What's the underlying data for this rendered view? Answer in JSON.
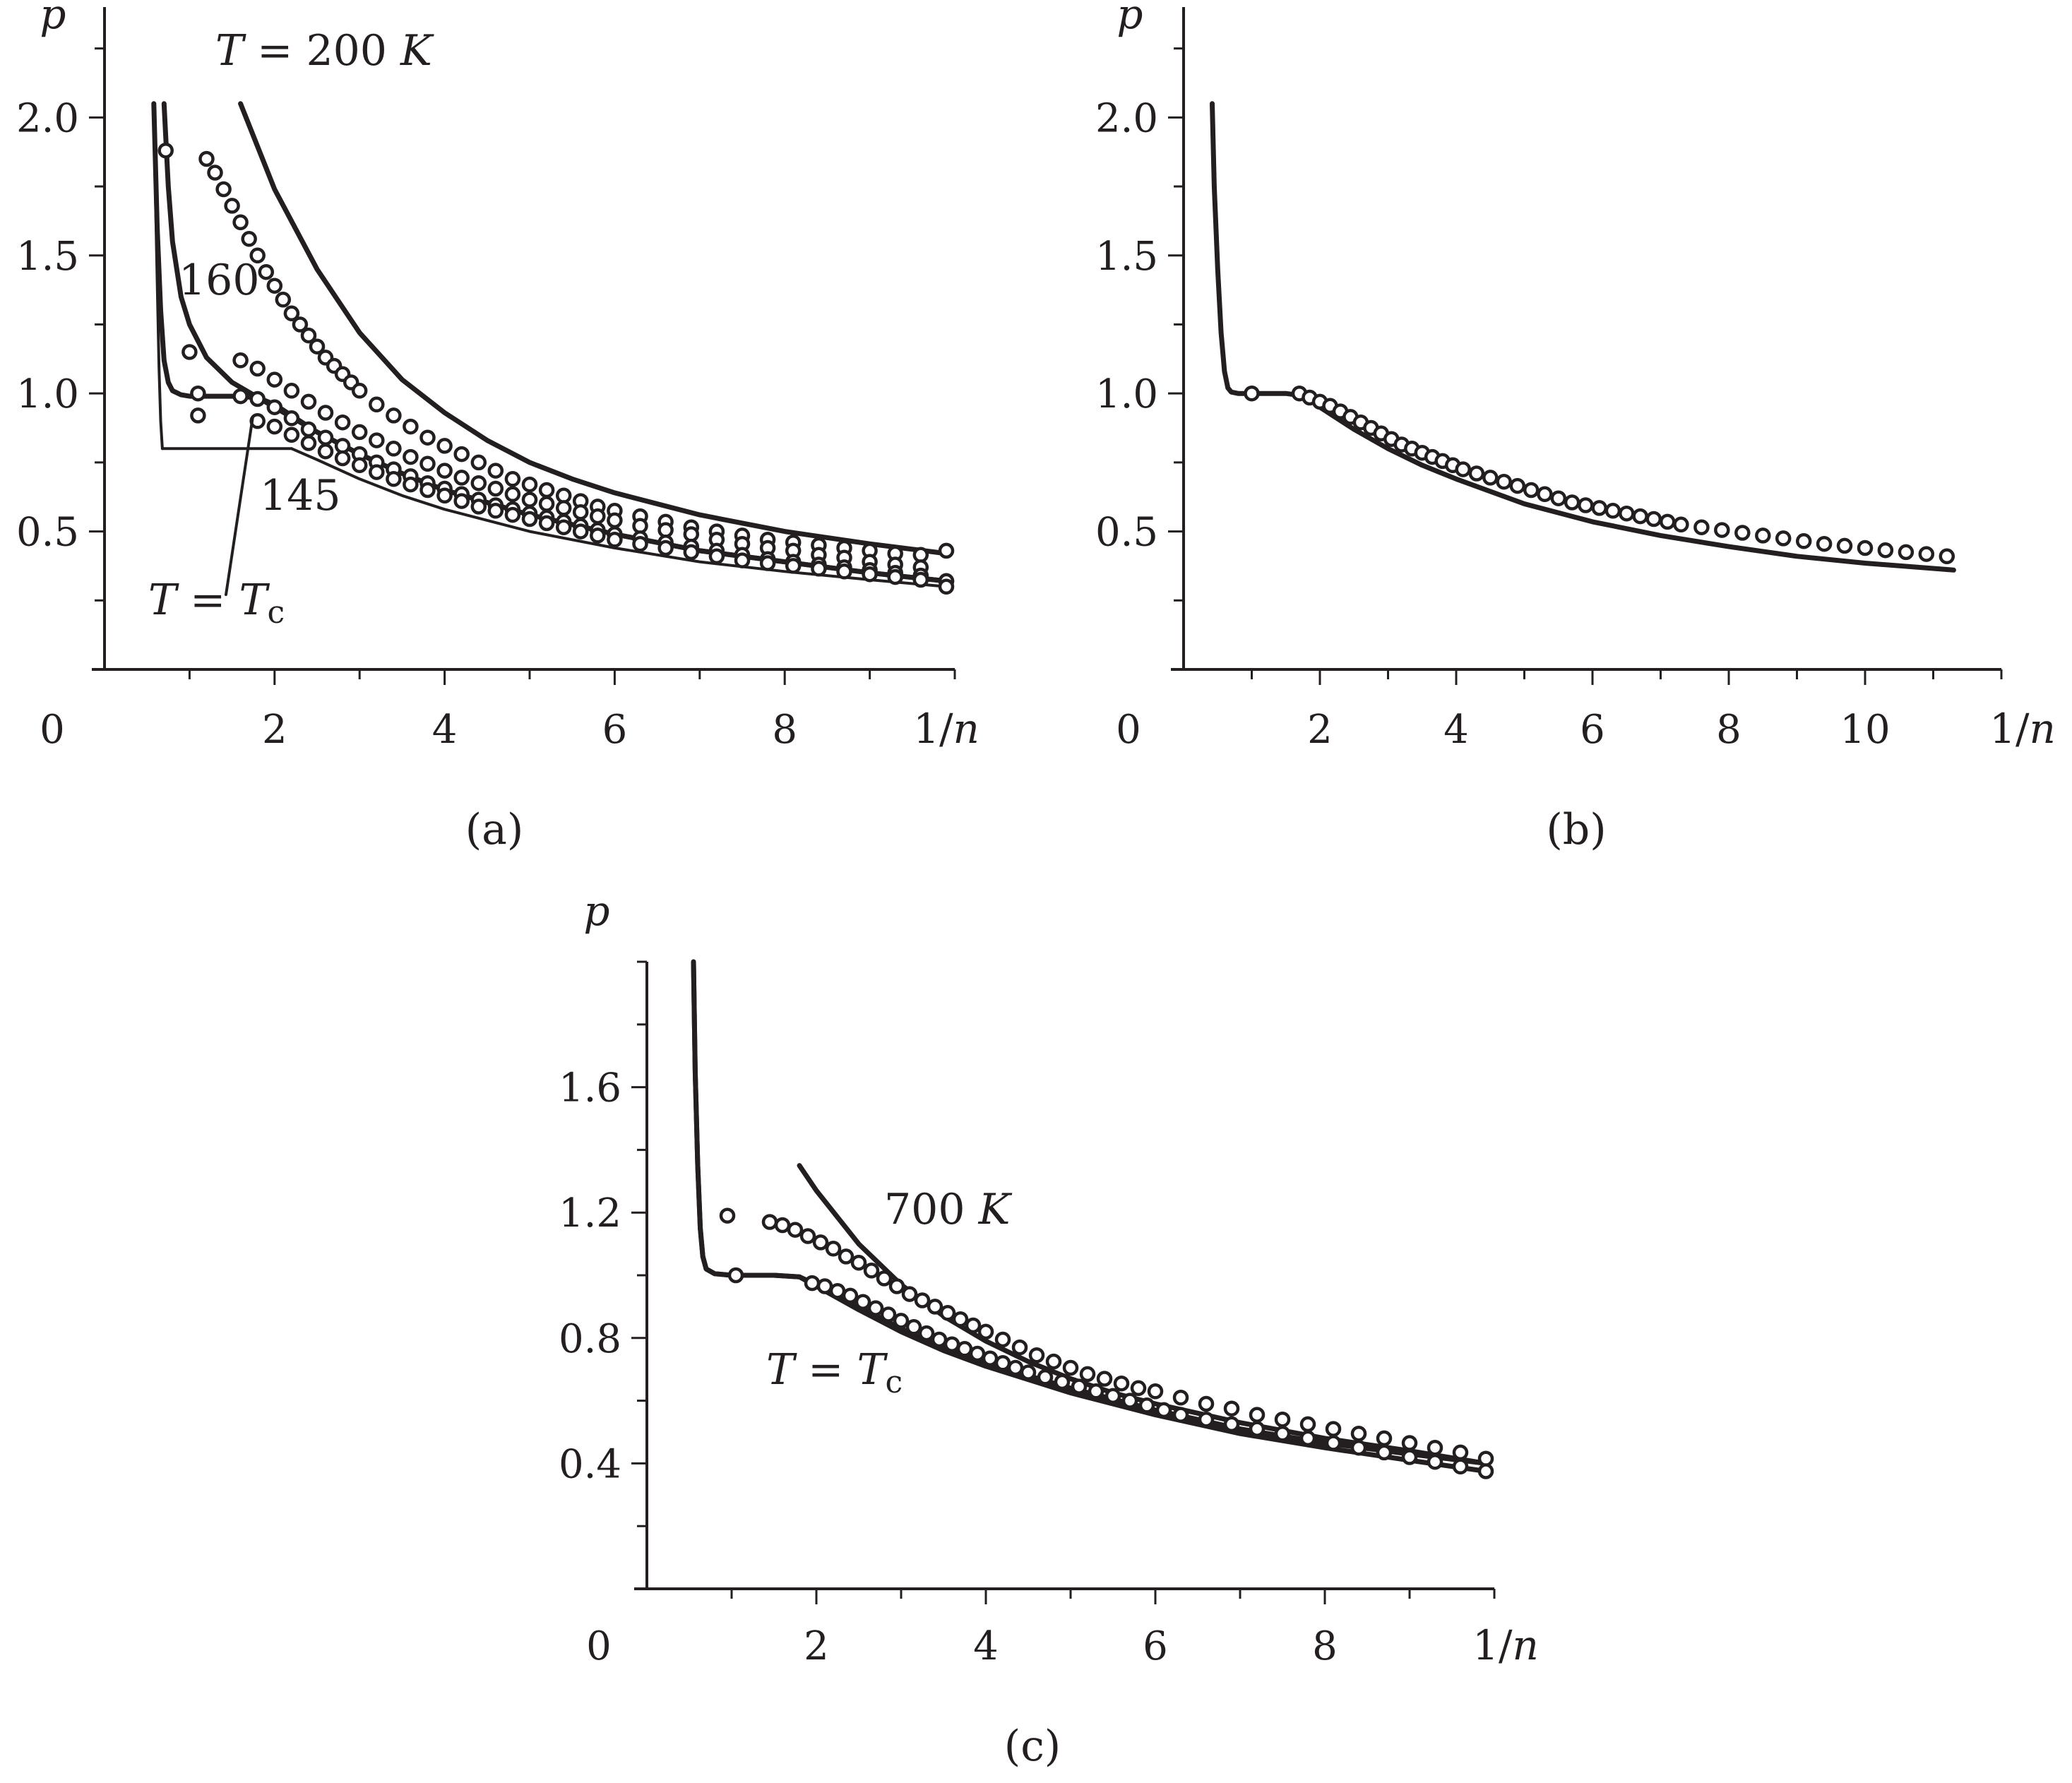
{
  "chart_data": [
    {
      "id": "a",
      "type": "line",
      "caption": "(a)",
      "xlabel": "1/n",
      "ylabel": "p",
      "origin_label": "0",
      "xlim": [
        0,
        10
      ],
      "ylim": [
        0,
        2.4
      ],
      "xticks": [
        2,
        4,
        6,
        8
      ],
      "xtick_labels": [
        "2",
        "4",
        "6",
        "8"
      ],
      "yticks": [
        0.5,
        1.0,
        1.5,
        2.0
      ],
      "ytick_labels": [
        "0.5",
        "1.0",
        "1.5",
        "2.0"
      ],
      "annotations": {
        "t200": [
          "T",
          " = 200 ",
          "K"
        ],
        "t160": "160",
        "t145": "145",
        "tc": [
          "T",
          " = ",
          "T",
          "c"
        ]
      },
      "series": [
        {
          "type": "line",
          "x": [
            1.6,
            2.0,
            2.5,
            3.0,
            3.5,
            4.0,
            4.5,
            5.0,
            5.5,
            6.0,
            7.0,
            8.0,
            9.0,
            9.9
          ],
          "y": [
            2.05,
            1.74,
            1.45,
            1.22,
            1.05,
            0.93,
            0.83,
            0.75,
            0.69,
            0.64,
            0.56,
            0.5,
            0.455,
            0.42
          ]
        },
        {
          "type": "line",
          "x": [
            0.7,
            0.75,
            0.8,
            0.9,
            1.0,
            1.2,
            1.5,
            2.0,
            2.5,
            3.0,
            3.5,
            4.0,
            5.0,
            6.0,
            7.0,
            8.0,
            9.0,
            9.9
          ],
          "y": [
            2.05,
            1.75,
            1.55,
            1.35,
            1.25,
            1.13,
            1.04,
            0.95,
            0.86,
            0.78,
            0.71,
            0.65,
            0.56,
            0.49,
            0.43,
            0.39,
            0.35,
            0.32
          ]
        },
        {
          "type": "line",
          "x": [
            0.58,
            0.62,
            0.66,
            0.7,
            0.75,
            0.8,
            0.9,
            1.0,
            1.2,
            1.5,
            1.8,
            2.0,
            2.5,
            3.0,
            3.5,
            4.0,
            5.0,
            6.0,
            7.0,
            8.0,
            9.0,
            9.9
          ],
          "y": [
            2.05,
            1.6,
            1.3,
            1.12,
            1.04,
            1.01,
            0.995,
            0.99,
            0.99,
            0.99,
            0.985,
            0.96,
            0.86,
            0.78,
            0.71,
            0.65,
            0.56,
            0.49,
            0.43,
            0.39,
            0.35,
            0.32
          ]
        },
        {
          "type": "line",
          "x": [
            0.58,
            0.61,
            0.64,
            0.66,
            0.68
          ],
          "y": [
            2.05,
            1.55,
            1.1,
            0.9,
            0.8
          ]
        },
        {
          "type": "line",
          "x": [
            0.68,
            2.2
          ],
          "y": [
            0.8,
            0.8
          ]
        },
        {
          "type": "line",
          "x": [
            2.2,
            2.5,
            3.0,
            3.5,
            4.0,
            5.0,
            6.0,
            7.0,
            8.0,
            9.0,
            9.9
          ],
          "y": [
            0.8,
            0.76,
            0.69,
            0.63,
            0.58,
            0.5,
            0.44,
            0.39,
            0.355,
            0.325,
            0.3
          ]
        },
        {
          "type": "scatter",
          "x": [
            1.2,
            1.3,
            1.4,
            1.5,
            1.6,
            1.7,
            1.8,
            1.9,
            2.0,
            2.1,
            2.2,
            2.3,
            2.4,
            2.5,
            2.6,
            2.7,
            2.8,
            2.9,
            3.0,
            3.2,
            3.4,
            3.6,
            3.8,
            4.0,
            4.2,
            4.4,
            4.6,
            4.8,
            5.0,
            5.2,
            5.4,
            5.6,
            5.8,
            6.0,
            6.3,
            6.6,
            6.9,
            7.2,
            7.5,
            7.8,
            8.1,
            8.4,
            8.7,
            9.0,
            9.3,
            9.6,
            9.9
          ],
          "y": [
            1.85,
            1.8,
            1.74,
            1.68,
            1.62,
            1.56,
            1.5,
            1.44,
            1.39,
            1.34,
            1.29,
            1.25,
            1.21,
            1.17,
            1.13,
            1.1,
            1.07,
            1.04,
            1.01,
            0.96,
            0.92,
            0.88,
            0.84,
            0.81,
            0.78,
            0.75,
            0.72,
            0.69,
            0.67,
            0.65,
            0.63,
            0.61,
            0.59,
            0.575,
            0.555,
            0.535,
            0.515,
            0.5,
            0.485,
            0.47,
            0.46,
            0.45,
            0.44,
            0.43,
            0.42,
            0.415,
            0.43
          ]
        },
        {
          "type": "scatter",
          "x": [
            0.72,
            1.0,
            1.6,
            1.8,
            2.0,
            2.2,
            2.4,
            2.6,
            2.8,
            3.0,
            3.2,
            3.4,
            3.6,
            3.8,
            4.0,
            4.2,
            4.4,
            4.6,
            4.8,
            5.0,
            5.2,
            5.4,
            5.6,
            5.8,
            6.0,
            6.3,
            6.6,
            6.9,
            7.2,
            7.5,
            7.8,
            8.1,
            8.4,
            8.7,
            9.0,
            9.3,
            9.6,
            9.9
          ],
          "y": [
            1.88,
            1.15,
            1.12,
            1.09,
            1.05,
            1.01,
            0.97,
            0.93,
            0.895,
            0.86,
            0.83,
            0.8,
            0.77,
            0.745,
            0.72,
            0.695,
            0.675,
            0.655,
            0.635,
            0.615,
            0.6,
            0.585,
            0.57,
            0.555,
            0.54,
            0.52,
            0.505,
            0.49,
            0.47,
            0.455,
            0.44,
            0.43,
            0.415,
            0.405,
            0.39,
            0.38,
            0.37,
            0.32
          ]
        },
        {
          "type": "scatter",
          "x": [
            1.1,
            1.6,
            1.8,
            2.0,
            2.2,
            2.4,
            2.6,
            2.8,
            3.0,
            3.2,
            3.4,
            3.6,
            3.8,
            4.0,
            4.2,
            4.4,
            4.6,
            4.8,
            5.0,
            5.2,
            5.4,
            5.6,
            5.8,
            6.0,
            6.3,
            6.6,
            6.9,
            7.2,
            7.5,
            7.8,
            8.1,
            8.4,
            8.7,
            9.0,
            9.3,
            9.6,
            9.9
          ],
          "y": [
            1.0,
            0.99,
            0.98,
            0.95,
            0.91,
            0.87,
            0.84,
            0.81,
            0.78,
            0.75,
            0.725,
            0.7,
            0.675,
            0.655,
            0.635,
            0.615,
            0.595,
            0.58,
            0.565,
            0.55,
            0.535,
            0.52,
            0.505,
            0.49,
            0.475,
            0.46,
            0.445,
            0.43,
            0.415,
            0.4,
            0.39,
            0.38,
            0.37,
            0.36,
            0.35,
            0.34,
            0.32
          ]
        },
        {
          "type": "scatter",
          "x": [
            1.1,
            1.8,
            2.0,
            2.2,
            2.4,
            2.6,
            2.8,
            3.0,
            3.2,
            3.4,
            3.6,
            3.8,
            4.0,
            4.2,
            4.4,
            4.6,
            4.8,
            5.0,
            5.2,
            5.4,
            5.6,
            5.8,
            6.0,
            6.3,
            6.6,
            6.9,
            7.2,
            7.5,
            7.8,
            8.1,
            8.4,
            8.7,
            9.0,
            9.3,
            9.6,
            9.9
          ],
          "y": [
            0.92,
            0.9,
            0.88,
            0.85,
            0.82,
            0.79,
            0.765,
            0.74,
            0.715,
            0.69,
            0.67,
            0.65,
            0.63,
            0.61,
            0.59,
            0.575,
            0.56,
            0.545,
            0.53,
            0.515,
            0.5,
            0.485,
            0.47,
            0.455,
            0.44,
            0.425,
            0.41,
            0.395,
            0.385,
            0.375,
            0.365,
            0.355,
            0.345,
            0.335,
            0.325,
            0.3
          ]
        }
      ]
    },
    {
      "id": "b",
      "type": "line",
      "caption": "(b)",
      "xlabel": "1/n",
      "ylabel": "p",
      "origin_label": "0",
      "xlim": [
        0,
        12
      ],
      "ylim": [
        0,
        2.4
      ],
      "xticks": [
        2,
        4,
        6,
        8,
        10
      ],
      "xtick_labels": [
        "2",
        "4",
        "6",
        "8",
        "10"
      ],
      "yticks": [
        0.5,
        1.0,
        1.5,
        2.0
      ],
      "ytick_labels": [
        "0.5",
        "1.0",
        "1.5",
        "2.0"
      ],
      "series": [
        {
          "type": "line",
          "x": [
            0.42,
            0.45,
            0.5,
            0.55,
            0.6,
            0.65,
            0.7,
            0.8,
            1.0,
            1.5,
            1.8,
            2.0,
            2.5,
            3.0,
            3.5,
            4.0,
            5.0,
            6.0,
            7.0,
            8.0,
            9.0,
            10.0,
            11.3
          ],
          "y": [
            2.05,
            1.75,
            1.45,
            1.22,
            1.08,
            1.02,
            1.005,
            1.0,
            1.0,
            1.0,
            0.99,
            0.95,
            0.87,
            0.8,
            0.74,
            0.69,
            0.6,
            0.535,
            0.485,
            0.445,
            0.41,
            0.385,
            0.36
          ]
        },
        {
          "type": "scatter",
          "x": [
            1.0,
            1.7,
            1.85,
            2.0,
            2.15,
            2.3,
            2.45,
            2.6,
            2.75,
            2.9,
            3.05,
            3.2,
            3.35,
            3.5,
            3.65,
            3.8,
            3.95,
            4.1,
            4.3,
            4.5,
            4.7,
            4.9,
            5.1,
            5.3,
            5.5,
            5.7,
            5.9,
            6.1,
            6.3,
            6.5,
            6.7,
            6.9,
            7.1,
            7.3,
            7.6,
            7.9,
            8.2,
            8.5,
            8.8,
            9.1,
            9.4,
            9.7,
            10.0,
            10.3,
            10.6,
            10.9,
            11.2
          ],
          "y": [
            1.0,
            1.0,
            0.985,
            0.97,
            0.955,
            0.935,
            0.915,
            0.895,
            0.875,
            0.855,
            0.835,
            0.815,
            0.8,
            0.785,
            0.77,
            0.755,
            0.74,
            0.725,
            0.71,
            0.695,
            0.68,
            0.665,
            0.65,
            0.635,
            0.62,
            0.605,
            0.595,
            0.585,
            0.575,
            0.565,
            0.555,
            0.545,
            0.535,
            0.525,
            0.515,
            0.505,
            0.495,
            0.485,
            0.475,
            0.465,
            0.455,
            0.448,
            0.44,
            0.432,
            0.425,
            0.418,
            0.41
          ]
        }
      ]
    },
    {
      "id": "c",
      "type": "line",
      "caption": "(c)",
      "xlabel": "1/n",
      "ylabel": "p",
      "origin_label": "0",
      "xlim": [
        0,
        10
      ],
      "ylim": [
        0,
        2.0
      ],
      "xticks": [
        2,
        4,
        6,
        8
      ],
      "xtick_labels": [
        "2",
        "4",
        "6",
        "8"
      ],
      "yticks": [
        0.4,
        0.8,
        1.2,
        1.6
      ],
      "ytick_labels": [
        "0.4",
        "0.8",
        "1.2",
        "1.6"
      ],
      "annotations": {
        "t700": [
          "700 ",
          "K"
        ],
        "tc": [
          "T",
          " = ",
          "T",
          "c"
        ]
      },
      "series": [
        {
          "type": "line",
          "x": [
            1.8,
            2.0,
            2.5,
            3.0,
            3.5,
            4.0,
            4.5,
            5.0,
            5.5,
            6.0,
            7.0,
            8.0,
            9.0,
            9.9
          ],
          "y": [
            1.35,
            1.27,
            1.1,
            0.97,
            0.87,
            0.79,
            0.725,
            0.67,
            0.625,
            0.59,
            0.53,
            0.48,
            0.44,
            0.4
          ]
        },
        {
          "type": "line",
          "x": [
            0.55,
            0.57,
            0.6,
            0.63,
            0.66,
            0.7,
            0.8,
            1.0,
            1.5,
            1.8,
            2.0,
            2.5,
            3.0,
            3.5,
            4.0,
            5.0,
            6.0,
            7.0,
            8.0,
            9.0,
            9.9
          ],
          "y": [
            2.0,
            1.65,
            1.35,
            1.15,
            1.06,
            1.02,
            1.005,
            1.0,
            1.0,
            0.995,
            0.97,
            0.9,
            0.83,
            0.77,
            0.72,
            0.64,
            0.57,
            0.51,
            0.465,
            0.43,
            0.4
          ]
        },
        {
          "type": "line",
          "x": [
            0.55,
            0.57,
            0.6,
            0.63,
            0.66,
            0.7,
            0.8,
            1.0,
            1.5,
            1.8,
            2.0,
            2.5,
            3.0,
            3.5,
            4.0,
            5.0,
            6.0,
            7.0,
            8.0,
            9.0,
            9.9
          ],
          "y": [
            2.0,
            1.65,
            1.35,
            1.15,
            1.06,
            1.02,
            1.005,
            1.0,
            1.0,
            0.995,
            0.965,
            0.89,
            0.82,
            0.76,
            0.71,
            0.625,
            0.555,
            0.495,
            0.45,
            0.41,
            0.375
          ]
        },
        {
          "type": "scatter",
          "x": [
            0.95,
            1.45,
            1.6,
            1.75,
            1.9,
            2.05,
            2.2,
            2.35,
            2.5,
            2.65,
            2.8,
            2.95,
            3.1,
            3.25,
            3.4,
            3.55,
            3.7,
            3.85,
            4.0,
            4.2,
            4.4,
            4.6,
            4.8,
            5.0,
            5.2,
            5.4,
            5.6,
            5.8,
            6.0,
            6.3,
            6.6,
            6.9,
            7.2,
            7.5,
            7.8,
            8.1,
            8.4,
            8.7,
            9.0,
            9.3,
            9.6,
            9.9
          ],
          "y": [
            1.19,
            1.17,
            1.16,
            1.145,
            1.125,
            1.105,
            1.085,
            1.06,
            1.04,
            1.015,
            0.99,
            0.965,
            0.94,
            0.92,
            0.9,
            0.88,
            0.86,
            0.84,
            0.82,
            0.795,
            0.77,
            0.745,
            0.725,
            0.705,
            0.685,
            0.67,
            0.655,
            0.64,
            0.63,
            0.61,
            0.59,
            0.575,
            0.555,
            0.54,
            0.525,
            0.51,
            0.495,
            0.48,
            0.465,
            0.45,
            0.435,
            0.415
          ]
        },
        {
          "type": "scatter",
          "x": [
            1.05,
            1.95,
            2.1,
            2.25,
            2.4,
            2.55,
            2.7,
            2.85,
            3.0,
            3.15,
            3.3,
            3.45,
            3.6,
            3.75,
            3.9,
            4.05,
            4.2,
            4.35,
            4.5,
            4.7,
            4.9,
            5.1,
            5.3,
            5.5,
            5.7,
            5.9,
            6.1,
            6.3,
            6.6,
            6.9,
            7.2,
            7.5,
            7.8,
            8.1,
            8.4,
            8.7,
            9.0,
            9.3,
            9.6,
            9.9
          ],
          "y": [
            1.0,
            0.975,
            0.965,
            0.95,
            0.935,
            0.915,
            0.895,
            0.875,
            0.855,
            0.835,
            0.815,
            0.795,
            0.78,
            0.765,
            0.75,
            0.735,
            0.72,
            0.705,
            0.69,
            0.675,
            0.66,
            0.645,
            0.63,
            0.615,
            0.6,
            0.585,
            0.57,
            0.555,
            0.54,
            0.525,
            0.51,
            0.495,
            0.48,
            0.465,
            0.45,
            0.435,
            0.42,
            0.405,
            0.39,
            0.375
          ]
        }
      ]
    }
  ]
}
